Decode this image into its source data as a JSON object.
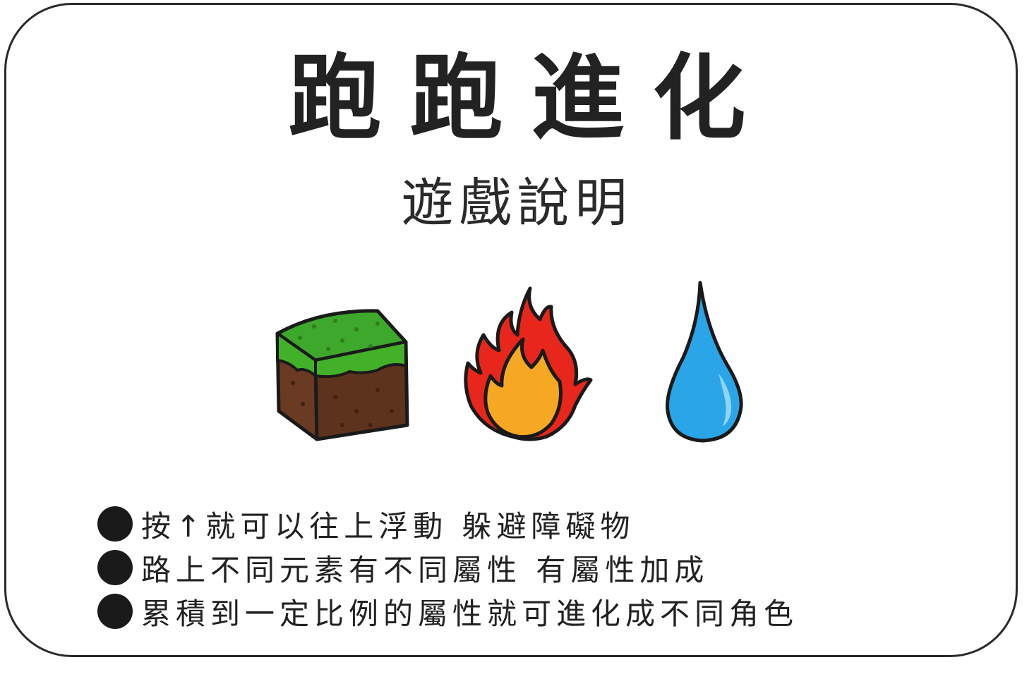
{
  "title": "跑跑進化",
  "subtitle": "遊戲說明",
  "elements": [
    {
      "icon": "grass-block-icon",
      "colors": {
        "grass": "#43b02a",
        "dirt": "#6b3a22"
      }
    },
    {
      "icon": "fire-icon",
      "colors": {
        "outer": "#e8261c",
        "inner": "#f7a823"
      }
    },
    {
      "icon": "water-drop-icon",
      "colors": {
        "fill": "#2aa5e8",
        "highlight": "#8fd3f5"
      }
    }
  ],
  "rules": [
    "按↑就可以往上浮動 躲避障礙物",
    "路上不同元素有不同屬性 有屬性加成",
    "累積到一定比例的屬性就可進化成不同角色"
  ],
  "colors": {
    "border": "#2a2a2a",
    "text": "#222222",
    "background": "#ffffff"
  }
}
